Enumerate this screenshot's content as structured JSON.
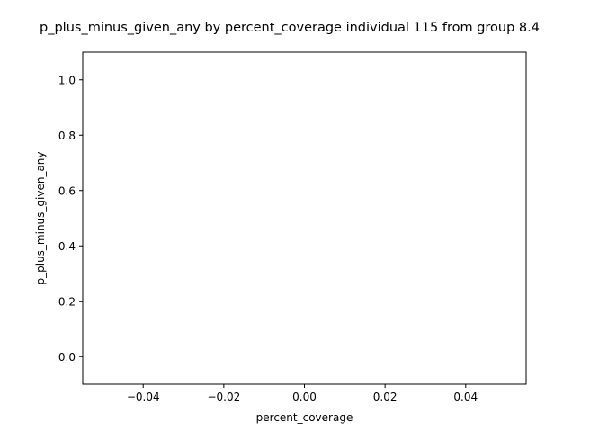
{
  "chart_data": {
    "type": "scatter",
    "title": "p_plus_minus_given_any by percent_coverage individual 115 from group 8.4",
    "xlabel": "percent_coverage",
    "ylabel": "p_plus_minus_given_any",
    "xlim": [
      -0.055,
      0.055
    ],
    "ylim": [
      -0.1,
      1.1
    ],
    "xticks": [
      -0.04,
      -0.02,
      0.0,
      0.02,
      0.04
    ],
    "xtick_labels": [
      "−0.04",
      "−0.02",
      "0.00",
      "0.02",
      "0.04"
    ],
    "yticks": [
      0.0,
      0.2,
      0.4,
      0.6,
      0.8,
      1.0
    ],
    "ytick_labels": [
      "0.0",
      "0.2",
      "0.4",
      "0.6",
      "0.8",
      "1.0"
    ],
    "grid": false,
    "series": [
      {
        "x": [],
        "y": []
      }
    ]
  }
}
